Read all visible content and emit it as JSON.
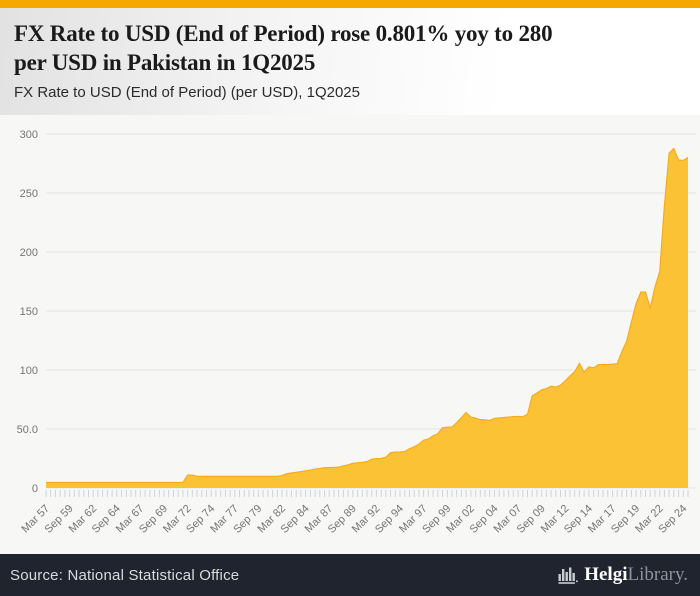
{
  "header": {
    "title_line1": "FX Rate to USD (End of Period) rose 0.801% yoy to 280",
    "title_line2": "per USD in Pakistan in 1Q2025",
    "subtitle": "FX Rate to USD (End of Period) (per USD), 1Q2025"
  },
  "footer": {
    "source": "Source: National Statistical Office",
    "logo_primary": "Helgi",
    "logo_secondary": "Library."
  },
  "colors": {
    "accent": "#F5A800",
    "header_grad_left": "#E2E2E2",
    "title_color": "#1A1A1A",
    "chart_bg": "#F7F7F6",
    "grid": "#E4E4E4",
    "axis_label": "#757575",
    "tick": "#C9D3E4",
    "area": "#FBC235",
    "area_edge": "#F5A91C",
    "footer_bg": "#1F242E",
    "footer_text": "#D9DBDE",
    "logo_primary": "#FFFFFF",
    "logo_secondary": "#8E939B",
    "logo_icon": "#C9CCD1"
  },
  "chart_data": {
    "type": "area",
    "title": "FX Rate to USD (End of Period) (per USD), 1Q2025",
    "xlabel": "",
    "ylabel": "",
    "unit": "PKR per USD",
    "frequency": "semiannual (end of March and September 1957-2024, plus March 2025)",
    "ylim": [
      0,
      300
    ],
    "y_ticks": [
      "300",
      "250",
      "200",
      "150",
      "100",
      "50.0",
      "0"
    ],
    "x_tick_every": 5,
    "x_tick_labels": [
      "Mar 57",
      "Sep 59",
      "Mar 62",
      "Sep 64",
      "Mar 67",
      "Sep 69",
      "Mar 72",
      "Sep 74",
      "Mar 77",
      "Sep 79",
      "Mar 82",
      "Sep 84",
      "Mar 87",
      "Sep 89",
      "Mar 92",
      "Sep 94",
      "Mar 97",
      "Sep 99",
      "Mar 02",
      "Sep 04",
      "Mar 07",
      "Sep 09",
      "Mar 12",
      "Sep 14",
      "Mar 17",
      "Sep 19",
      "Mar 22",
      "Sep 24"
    ],
    "last_period": "Mar 2025",
    "last_value": 280.2,
    "yoy_change_pct": 0.801,
    "values": [
      4.76,
      4.76,
      4.76,
      4.76,
      4.76,
      4.76,
      4.76,
      4.76,
      4.76,
      4.76,
      4.76,
      4.76,
      4.76,
      4.76,
      4.76,
      4.76,
      4.76,
      4.76,
      4.76,
      4.76,
      4.76,
      4.76,
      4.76,
      4.76,
      4.76,
      4.76,
      4.76,
      4.76,
      4.76,
      4.76,
      11.0,
      11.0,
      9.9,
      9.9,
      9.9,
      9.9,
      9.9,
      9.9,
      9.9,
      9.9,
      9.9,
      9.9,
      9.9,
      9.9,
      9.9,
      9.9,
      9.9,
      9.9,
      9.9,
      9.9,
      10.6,
      12.1,
      12.8,
      13.3,
      13.9,
      14.6,
      15.2,
      16.1,
      16.6,
      17.2,
      17.3,
      17.5,
      17.7,
      18.7,
      19.7,
      20.9,
      21.4,
      21.8,
      22.4,
      24.4,
      24.9,
      25.1,
      26.2,
      29.9,
      30.5,
      30.6,
      30.9,
      33.3,
      35.0,
      37.2,
      40.6,
      41.5,
      44.3,
      46.0,
      51.0,
      51.7,
      51.7,
      55.5,
      59.7,
      64.1,
      60.1,
      59.2,
      58.0,
      57.8,
      57.3,
      59.1,
      59.4,
      59.8,
      60.2,
      60.6,
      60.7,
      60.4,
      62.5,
      78.2,
      80.4,
      83.2,
      84.3,
      86.3,
      85.5,
      87.2,
      90.9,
      94.9,
      98.6,
      105.7,
      98.2,
      102.7,
      101.9,
      104.5,
      104.8,
      104.6,
      104.9,
      105.4,
      115.6,
      124.2,
      140.9,
      156.3,
      166.1,
      166.0,
      152.6,
      170.5,
      183.5,
      239.7,
      283.8,
      287.7,
      277.9,
      277.7,
      280.2
    ]
  }
}
